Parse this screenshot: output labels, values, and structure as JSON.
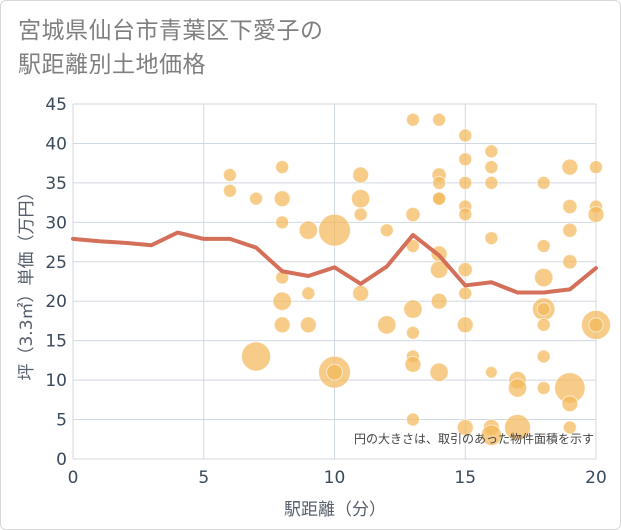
{
  "title_lines": [
    "宮城県仙台市青葉区下愛子の",
    "駅距離別土地価格"
  ],
  "chart_data": {
    "type": "scatter",
    "xlabel": "駅距離（分）",
    "ylabel": "坪（3.3㎡）単価（万円）",
    "xlim": [
      0,
      20
    ],
    "ylim": [
      0,
      45
    ],
    "xticks": [
      0,
      5,
      10,
      15,
      20
    ],
    "yticks": [
      0,
      5,
      10,
      15,
      20,
      25,
      30,
      35,
      40,
      45
    ],
    "grid": true,
    "note": "円の大きさは、取引のあった物件面積を示す",
    "colors": {
      "bubble": "#f2b95a",
      "line": "#d4705a",
      "grid": "#d0d8e0"
    },
    "bubbles": [
      {
        "x": 6,
        "y": 36,
        "s": 1
      },
      {
        "x": 6,
        "y": 34,
        "s": 1
      },
      {
        "x": 7,
        "y": 33,
        "s": 1
      },
      {
        "x": 7,
        "y": 13,
        "s": 5
      },
      {
        "x": 8,
        "y": 37,
        "s": 1
      },
      {
        "x": 8,
        "y": 33,
        "s": 1.5
      },
      {
        "x": 8,
        "y": 30,
        "s": 1
      },
      {
        "x": 8,
        "y": 23,
        "s": 1
      },
      {
        "x": 8,
        "y": 20,
        "s": 2
      },
      {
        "x": 8,
        "y": 17,
        "s": 1.5
      },
      {
        "x": 9,
        "y": 29,
        "s": 2
      },
      {
        "x": 9,
        "y": 21,
        "s": 1
      },
      {
        "x": 9,
        "y": 17,
        "s": 1.5
      },
      {
        "x": 10,
        "y": 29,
        "s": 6
      },
      {
        "x": 10,
        "y": 11,
        "s": 6
      },
      {
        "x": 10,
        "y": 11,
        "s": 1.5
      },
      {
        "x": 11,
        "y": 36,
        "s": 1.5
      },
      {
        "x": 11,
        "y": 33,
        "s": 2
      },
      {
        "x": 11,
        "y": 31,
        "s": 1
      },
      {
        "x": 11,
        "y": 21,
        "s": 1.5
      },
      {
        "x": 12,
        "y": 29,
        "s": 1
      },
      {
        "x": 12,
        "y": 17,
        "s": 2
      },
      {
        "x": 13,
        "y": 43,
        "s": 1
      },
      {
        "x": 13,
        "y": 31,
        "s": 1.2
      },
      {
        "x": 13,
        "y": 27,
        "s": 1
      },
      {
        "x": 13,
        "y": 19,
        "s": 2
      },
      {
        "x": 13,
        "y": 16,
        "s": 1
      },
      {
        "x": 13,
        "y": 13,
        "s": 1
      },
      {
        "x": 13,
        "y": 12,
        "s": 1.5
      },
      {
        "x": 13,
        "y": 5,
        "s": 1
      },
      {
        "x": 14,
        "y": 43,
        "s": 1
      },
      {
        "x": 14,
        "y": 36,
        "s": 1.2
      },
      {
        "x": 14,
        "y": 35,
        "s": 1
      },
      {
        "x": 14,
        "y": 33,
        "s": 1
      },
      {
        "x": 14,
        "y": 33,
        "s": 1
      },
      {
        "x": 14,
        "y": 26,
        "s": 1.5
      },
      {
        "x": 14,
        "y": 24,
        "s": 1.8
      },
      {
        "x": 14,
        "y": 20,
        "s": 1.5
      },
      {
        "x": 14,
        "y": 11,
        "s": 2
      },
      {
        "x": 15,
        "y": 41,
        "s": 1
      },
      {
        "x": 15,
        "y": 38,
        "s": 1
      },
      {
        "x": 15,
        "y": 35,
        "s": 1
      },
      {
        "x": 15,
        "y": 32,
        "s": 1
      },
      {
        "x": 15,
        "y": 31,
        "s": 1
      },
      {
        "x": 15,
        "y": 24,
        "s": 1.2
      },
      {
        "x": 15,
        "y": 21,
        "s": 1
      },
      {
        "x": 15,
        "y": 17,
        "s": 1.5
      },
      {
        "x": 15,
        "y": 4,
        "s": 1.5
      },
      {
        "x": 16,
        "y": 39,
        "s": 1
      },
      {
        "x": 16,
        "y": 37,
        "s": 1
      },
      {
        "x": 16,
        "y": 35,
        "s": 1
      },
      {
        "x": 16,
        "y": 28,
        "s": 1
      },
      {
        "x": 16,
        "y": 11,
        "s": 0.8
      },
      {
        "x": 16,
        "y": 4,
        "s": 1.5
      },
      {
        "x": 16,
        "y": 3,
        "s": 2.5
      },
      {
        "x": 17,
        "y": 10,
        "s": 1.8
      },
      {
        "x": 17,
        "y": 9,
        "s": 2
      },
      {
        "x": 17,
        "y": 4,
        "s": 4
      },
      {
        "x": 18,
        "y": 35,
        "s": 1
      },
      {
        "x": 18,
        "y": 27,
        "s": 1
      },
      {
        "x": 18,
        "y": 23,
        "s": 2
      },
      {
        "x": 18,
        "y": 19,
        "s": 3
      },
      {
        "x": 18,
        "y": 19,
        "s": 1
      },
      {
        "x": 18,
        "y": 17,
        "s": 1
      },
      {
        "x": 18,
        "y": 13,
        "s": 1
      },
      {
        "x": 18,
        "y": 9,
        "s": 1
      },
      {
        "x": 19,
        "y": 37,
        "s": 1.5
      },
      {
        "x": 19,
        "y": 32,
        "s": 1.2
      },
      {
        "x": 19,
        "y": 29,
        "s": 1.2
      },
      {
        "x": 19,
        "y": 25,
        "s": 1.2
      },
      {
        "x": 19,
        "y": 9,
        "s": 5.5
      },
      {
        "x": 19,
        "y": 7,
        "s": 1.5
      },
      {
        "x": 19,
        "y": 4,
        "s": 1
      },
      {
        "x": 20,
        "y": 37,
        "s": 1
      },
      {
        "x": 20,
        "y": 32,
        "s": 1
      },
      {
        "x": 20,
        "y": 31,
        "s": 1.5
      },
      {
        "x": 20,
        "y": 17,
        "s": 5
      },
      {
        "x": 20,
        "y": 17,
        "s": 1.2
      }
    ],
    "trend": {
      "x": [
        0,
        1,
        2,
        3,
        4,
        5,
        6,
        7,
        8,
        9,
        10,
        11,
        12,
        13,
        14,
        15,
        16,
        17,
        18,
        19,
        20
      ],
      "y": [
        27.9,
        27.6,
        27.4,
        27.1,
        28.7,
        27.9,
        27.9,
        26.8,
        23.8,
        23.2,
        24.3,
        22.2,
        24.4,
        28.4,
        25.8,
        22.0,
        22.4,
        21.1,
        21.1,
        21.5,
        24.2
      ]
    }
  }
}
